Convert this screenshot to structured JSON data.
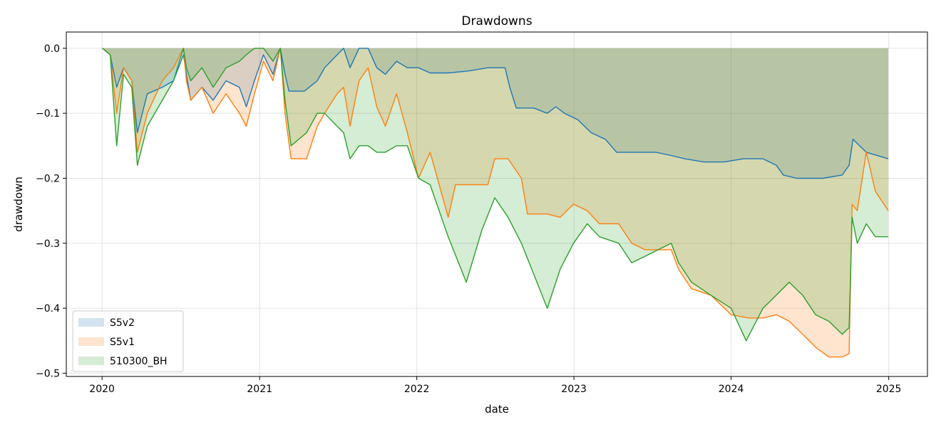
{
  "chart_data": {
    "type": "area",
    "title": "Drawdowns",
    "xlabel": "date",
    "ylabel": "drawdown",
    "xlim": [
      "2019-10-10",
      "2025-04-01"
    ],
    "ylim": [
      -0.505,
      0.025
    ],
    "x_ticks": [
      "2020",
      "2021",
      "2022",
      "2023",
      "2024",
      "2025"
    ],
    "y_ticks": [
      "0.0",
      "−0.1",
      "−0.2",
      "−0.3",
      "−0.4",
      "−0.5"
    ],
    "grid": true,
    "legend_position": "lower-left",
    "series": [
      {
        "name": "S5v2",
        "color": "#1f77b4",
        "points": [
          [
            "2020-01-02",
            0.0
          ],
          [
            "2020-01-20",
            -0.01
          ],
          [
            "2020-02-04",
            -0.06
          ],
          [
            "2020-02-20",
            -0.03
          ],
          [
            "2020-03-10",
            -0.05
          ],
          [
            "2020-03-23",
            -0.13
          ],
          [
            "2020-04-15",
            -0.07
          ],
          [
            "2020-05-20",
            -0.06
          ],
          [
            "2020-06-15",
            -0.05
          ],
          [
            "2020-07-08",
            -0.01
          ],
          [
            "2020-07-15",
            -0.04
          ],
          [
            "2020-07-25",
            -0.08
          ],
          [
            "2020-08-20",
            -0.06
          ],
          [
            "2020-09-15",
            -0.08
          ],
          [
            "2020-10-15",
            -0.05
          ],
          [
            "2020-11-15",
            -0.06
          ],
          [
            "2020-12-01",
            -0.09
          ],
          [
            "2020-12-20",
            -0.05
          ],
          [
            "2021-01-10",
            -0.01
          ],
          [
            "2021-02-01",
            -0.04
          ],
          [
            "2021-02-18",
            0.0
          ],
          [
            "2021-03-01",
            -0.04
          ],
          [
            "2021-03-10",
            -0.066
          ],
          [
            "2021-04-15",
            -0.066
          ],
          [
            "2021-05-15",
            -0.05
          ],
          [
            "2021-06-01",
            -0.03
          ],
          [
            "2021-06-30",
            -0.01
          ],
          [
            "2021-07-15",
            0.0
          ],
          [
            "2021-07-30",
            -0.03
          ],
          [
            "2021-08-20",
            0.0
          ],
          [
            "2021-09-10",
            0.0
          ],
          [
            "2021-09-30",
            -0.03
          ],
          [
            "2021-10-20",
            -0.04
          ],
          [
            "2021-11-15",
            -0.02
          ],
          [
            "2021-12-10",
            -0.03
          ],
          [
            "2022-01-05",
            -0.03
          ],
          [
            "2022-02-01",
            -0.038
          ],
          [
            "2022-03-15",
            -0.038
          ],
          [
            "2022-04-30",
            -0.035
          ],
          [
            "2022-06-15",
            -0.03
          ],
          [
            "2022-07-25",
            -0.03
          ],
          [
            "2022-08-05",
            -0.06
          ],
          [
            "2022-08-20",
            -0.092
          ],
          [
            "2022-09-30",
            -0.092
          ],
          [
            "2022-10-31",
            -0.1
          ],
          [
            "2022-11-20",
            -0.09
          ],
          [
            "2022-12-10",
            -0.1
          ],
          [
            "2023-01-10",
            -0.11
          ],
          [
            "2023-02-10",
            -0.13
          ],
          [
            "2023-03-15",
            -0.14
          ],
          [
            "2023-04-10",
            -0.16
          ],
          [
            "2023-05-20",
            -0.16
          ],
          [
            "2023-07-10",
            -0.16
          ],
          [
            "2023-08-15",
            -0.165
          ],
          [
            "2023-09-15",
            -0.17
          ],
          [
            "2023-10-30",
            -0.175
          ],
          [
            "2023-12-15",
            -0.175
          ],
          [
            "2024-01-30",
            -0.17
          ],
          [
            "2024-03-15",
            -0.17
          ],
          [
            "2024-04-15",
            -0.18
          ],
          [
            "2024-05-01",
            -0.195
          ],
          [
            "2024-06-01",
            -0.2
          ],
          [
            "2024-07-01",
            -0.2
          ],
          [
            "2024-08-01",
            -0.2
          ],
          [
            "2024-09-15",
            -0.195
          ],
          [
            "2024-10-01",
            -0.18
          ],
          [
            "2024-10-10",
            -0.14
          ],
          [
            "2024-11-10",
            -0.16
          ],
          [
            "2024-12-31",
            -0.17
          ]
        ]
      },
      {
        "name": "S5v1",
        "color": "#ff7f0e",
        "points": [
          [
            "2020-01-02",
            0.0
          ],
          [
            "2020-01-20",
            -0.01
          ],
          [
            "2020-02-04",
            -0.1
          ],
          [
            "2020-02-20",
            -0.03
          ],
          [
            "2020-03-10",
            -0.05
          ],
          [
            "2020-03-23",
            -0.16
          ],
          [
            "2020-04-15",
            -0.1
          ],
          [
            "2020-05-20",
            -0.05
          ],
          [
            "2020-06-15",
            -0.03
          ],
          [
            "2020-07-08",
            0.0
          ],
          [
            "2020-07-15",
            -0.05
          ],
          [
            "2020-07-25",
            -0.08
          ],
          [
            "2020-08-20",
            -0.06
          ],
          [
            "2020-09-15",
            -0.1
          ],
          [
            "2020-10-15",
            -0.07
          ],
          [
            "2020-11-15",
            -0.1
          ],
          [
            "2020-12-01",
            -0.12
          ],
          [
            "2020-12-20",
            -0.07
          ],
          [
            "2021-01-10",
            -0.02
          ],
          [
            "2021-02-01",
            -0.05
          ],
          [
            "2021-02-18",
            0.0
          ],
          [
            "2021-03-01",
            -0.1
          ],
          [
            "2021-03-15",
            -0.17
          ],
          [
            "2021-04-20",
            -0.17
          ],
          [
            "2021-05-15",
            -0.12
          ],
          [
            "2021-06-01",
            -0.1
          ],
          [
            "2021-06-30",
            -0.07
          ],
          [
            "2021-07-15",
            -0.06
          ],
          [
            "2021-07-30",
            -0.12
          ],
          [
            "2021-08-20",
            -0.05
          ],
          [
            "2021-09-10",
            -0.03
          ],
          [
            "2021-09-30",
            -0.09
          ],
          [
            "2021-10-20",
            -0.12
          ],
          [
            "2021-11-15",
            -0.07
          ],
          [
            "2021-12-10",
            -0.13
          ],
          [
            "2022-01-05",
            -0.2
          ],
          [
            "2022-02-01",
            -0.16
          ],
          [
            "2022-03-15",
            -0.26
          ],
          [
            "2022-04-01",
            -0.21
          ],
          [
            "2022-05-15",
            -0.21
          ],
          [
            "2022-06-15",
            -0.21
          ],
          [
            "2022-07-01",
            -0.17
          ],
          [
            "2022-08-01",
            -0.17
          ],
          [
            "2022-09-01",
            -0.2
          ],
          [
            "2022-09-15",
            -0.255
          ],
          [
            "2022-10-31",
            -0.255
          ],
          [
            "2022-11-30",
            -0.26
          ],
          [
            "2022-12-31",
            -0.24
          ],
          [
            "2023-02-01",
            -0.25
          ],
          [
            "2023-03-01",
            -0.27
          ],
          [
            "2023-04-15",
            -0.27
          ],
          [
            "2023-05-15",
            -0.3
          ],
          [
            "2023-06-15",
            -0.31
          ],
          [
            "2023-08-15",
            -0.31
          ],
          [
            "2023-09-01",
            -0.34
          ],
          [
            "2023-10-01",
            -0.37
          ],
          [
            "2023-11-15",
            -0.38
          ],
          [
            "2024-01-01",
            -0.41
          ],
          [
            "2024-02-10",
            -0.415
          ],
          [
            "2024-03-15",
            -0.415
          ],
          [
            "2024-04-15",
            -0.41
          ],
          [
            "2024-05-15",
            -0.42
          ],
          [
            "2024-06-15",
            -0.44
          ],
          [
            "2024-07-15",
            -0.46
          ],
          [
            "2024-08-15",
            -0.475
          ],
          [
            "2024-09-15",
            -0.475
          ],
          [
            "2024-10-01",
            -0.47
          ],
          [
            "2024-10-08",
            -0.24
          ],
          [
            "2024-10-20",
            -0.25
          ],
          [
            "2024-11-10",
            -0.16
          ],
          [
            "2024-12-01",
            -0.22
          ],
          [
            "2024-12-31",
            -0.25
          ]
        ]
      },
      {
        "name": "510300_BH",
        "color": "#2ca02c",
        "points": [
          [
            "2020-01-02",
            0.0
          ],
          [
            "2020-01-20",
            -0.01
          ],
          [
            "2020-02-04",
            -0.15
          ],
          [
            "2020-02-20",
            -0.04
          ],
          [
            "2020-03-10",
            -0.06
          ],
          [
            "2020-03-23",
            -0.18
          ],
          [
            "2020-04-15",
            -0.12
          ],
          [
            "2020-05-20",
            -0.08
          ],
          [
            "2020-06-15",
            -0.05
          ],
          [
            "2020-07-08",
            0.0
          ],
          [
            "2020-07-15",
            -0.03
          ],
          [
            "2020-07-25",
            -0.05
          ],
          [
            "2020-08-20",
            -0.03
          ],
          [
            "2020-09-15",
            -0.06
          ],
          [
            "2020-10-15",
            -0.03
          ],
          [
            "2020-11-15",
            -0.02
          ],
          [
            "2020-12-01",
            -0.01
          ],
          [
            "2020-12-20",
            0.0
          ],
          [
            "2021-01-10",
            0.0
          ],
          [
            "2021-02-01",
            -0.02
          ],
          [
            "2021-02-18",
            0.0
          ],
          [
            "2021-03-01",
            -0.08
          ],
          [
            "2021-03-15",
            -0.15
          ],
          [
            "2021-04-20",
            -0.13
          ],
          [
            "2021-05-15",
            -0.1
          ],
          [
            "2021-06-01",
            -0.1
          ],
          [
            "2021-06-30",
            -0.12
          ],
          [
            "2021-07-15",
            -0.13
          ],
          [
            "2021-07-30",
            -0.17
          ],
          [
            "2021-08-20",
            -0.15
          ],
          [
            "2021-09-10",
            -0.15
          ],
          [
            "2021-09-30",
            -0.16
          ],
          [
            "2021-10-20",
            -0.16
          ],
          [
            "2021-11-15",
            -0.15
          ],
          [
            "2021-12-10",
            -0.15
          ],
          [
            "2022-01-05",
            -0.2
          ],
          [
            "2022-02-01",
            -0.21
          ],
          [
            "2022-03-15",
            -0.29
          ],
          [
            "2022-04-26",
            -0.36
          ],
          [
            "2022-06-01",
            -0.28
          ],
          [
            "2022-07-01",
            -0.23
          ],
          [
            "2022-08-01",
            -0.26
          ],
          [
            "2022-09-01",
            -0.3
          ],
          [
            "2022-10-31",
            -0.4
          ],
          [
            "2022-11-30",
            -0.34
          ],
          [
            "2022-12-31",
            -0.3
          ],
          [
            "2023-02-01",
            -0.27
          ],
          [
            "2023-03-01",
            -0.29
          ],
          [
            "2023-04-15",
            -0.3
          ],
          [
            "2023-05-15",
            -0.33
          ],
          [
            "2023-06-15",
            -0.32
          ],
          [
            "2023-08-15",
            -0.3
          ],
          [
            "2023-09-01",
            -0.33
          ],
          [
            "2023-10-01",
            -0.36
          ],
          [
            "2023-11-15",
            -0.38
          ],
          [
            "2024-01-01",
            -0.4
          ],
          [
            "2024-02-05",
            -0.45
          ],
          [
            "2024-03-15",
            -0.4
          ],
          [
            "2024-04-15",
            -0.38
          ],
          [
            "2024-05-15",
            -0.36
          ],
          [
            "2024-06-15",
            -0.38
          ],
          [
            "2024-07-15",
            -0.41
          ],
          [
            "2024-08-15",
            -0.42
          ],
          [
            "2024-09-15",
            -0.44
          ],
          [
            "2024-10-01",
            -0.43
          ],
          [
            "2024-10-08",
            -0.26
          ],
          [
            "2024-10-20",
            -0.3
          ],
          [
            "2024-11-10",
            -0.27
          ],
          [
            "2024-12-01",
            -0.29
          ],
          [
            "2024-12-31",
            -0.29
          ]
        ]
      }
    ]
  }
}
